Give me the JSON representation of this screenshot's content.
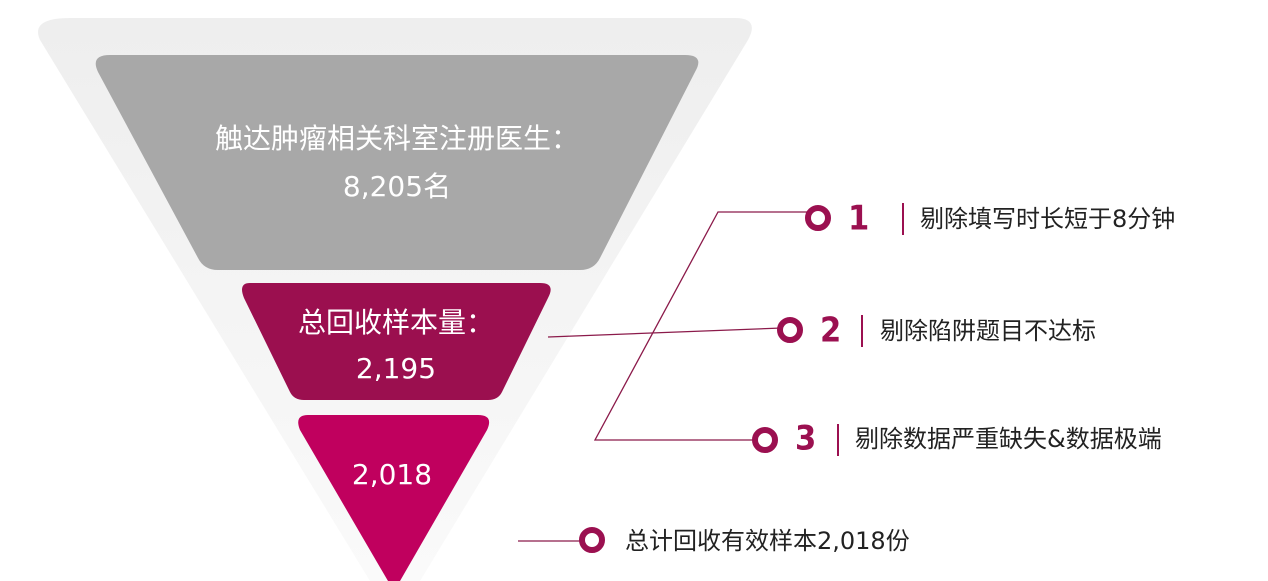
{
  "funnel": {
    "stages": [
      {
        "label": "触达肿瘤相关科室注册医生：",
        "value": "8,205名"
      },
      {
        "label": "总回收样本量：",
        "value": "2,195"
      },
      {
        "value": "2,018"
      }
    ]
  },
  "steps": [
    {
      "number": "1",
      "text": "剔除填写时长短于8分钟"
    },
    {
      "number": "2",
      "text": "剔除陷阱题目不达标"
    },
    {
      "number": "3",
      "text": "剔除数据严重缺失&数据极端"
    }
  ],
  "summary": "总计回收有效样本2,018份"
}
